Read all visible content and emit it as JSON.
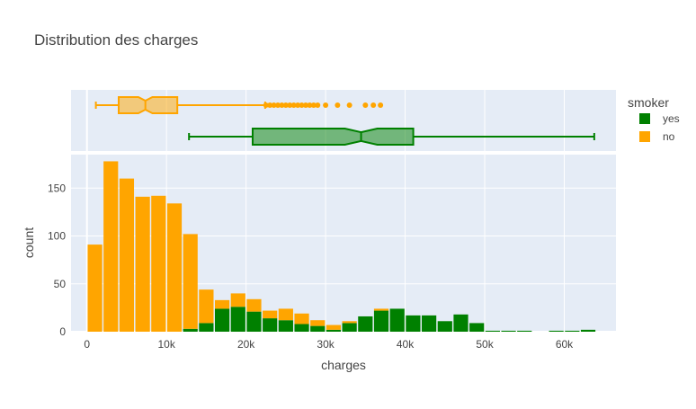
{
  "chart_data": {
    "type": "histogram",
    "title": "Distribution des charges",
    "xlabel": "charges",
    "ylabel": "count",
    "x_range": [
      -2000,
      66500
    ],
    "ylim": [
      0,
      185
    ],
    "x_ticks": [
      0,
      10000,
      20000,
      30000,
      40000,
      50000,
      60000
    ],
    "x_tick_labels": [
      "0",
      "10k",
      "20k",
      "30k",
      "40k",
      "50k",
      "60k"
    ],
    "y_ticks": [
      0,
      50,
      100,
      150
    ],
    "y_tick_labels": [
      "0",
      "50",
      "100",
      "150"
    ],
    "bin_start": 0,
    "bin_size": 2000,
    "barmode": "stack",
    "legend": {
      "title": "smoker",
      "placement": "top-right"
    },
    "grid": true,
    "series": [
      {
        "name": "yes",
        "color": "#008000",
        "values": [
          0,
          0,
          0,
          0,
          0,
          0,
          3,
          9,
          24,
          26,
          21,
          14,
          12,
          8,
          6,
          2,
          9,
          16,
          22,
          24,
          17,
          17,
          11,
          18,
          9,
          1,
          1,
          1,
          0,
          1,
          1,
          2
        ]
      },
      {
        "name": "no",
        "color": "#FFA500",
        "values": [
          91,
          178,
          160,
          141,
          142,
          134,
          99,
          35,
          9,
          14,
          13,
          8,
          12,
          11,
          6,
          5,
          2,
          0,
          2,
          0,
          0,
          0,
          0,
          0,
          0,
          0,
          0,
          0,
          0,
          0,
          0,
          0
        ]
      }
    ],
    "boxplots": [
      {
        "name": "no",
        "color": "#FFA500",
        "lower_fence": 1120,
        "q1": 3990,
        "median": 7345,
        "q3": 11360,
        "upper_fence": 22400,
        "outliers": [
          22500,
          23000,
          23500,
          24000,
          24500,
          25000,
          25500,
          26000,
          26500,
          27000,
          27500,
          28000,
          28500,
          29000,
          30000,
          31500,
          33000,
          35000,
          36000,
          36900
        ]
      },
      {
        "name": "yes",
        "color": "#008000",
        "lower_fence": 12830,
        "q1": 20830,
        "median": 34460,
        "q3": 41020,
        "upper_fence": 63770
      }
    ]
  }
}
